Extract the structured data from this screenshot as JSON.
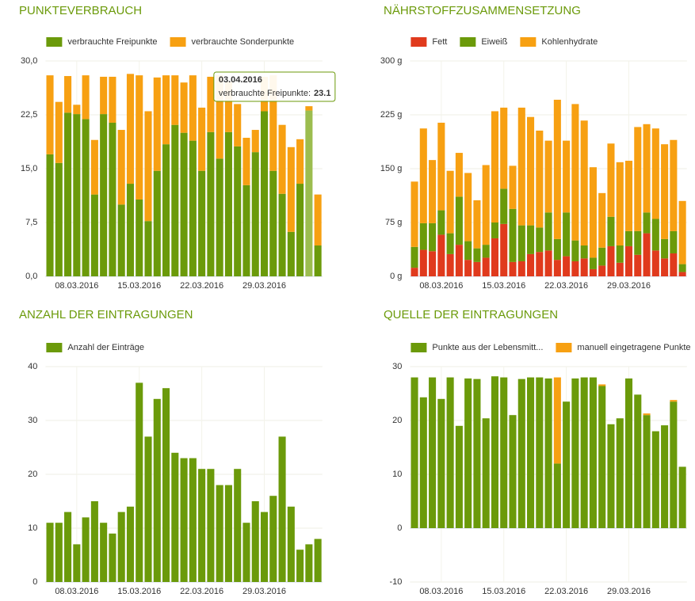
{
  "chart_data": [
    {
      "type": "bar",
      "title": "PUNKTEVERBRAUCH",
      "stacked": true,
      "grid": true,
      "categories": [
        null,
        null,
        null,
        "08.03.2016",
        null,
        null,
        null,
        null,
        null,
        null,
        "15.03.2016",
        null,
        null,
        null,
        null,
        null,
        null,
        "22.03.2016",
        null,
        null,
        null,
        null,
        null,
        null,
        "29.03.2016",
        null,
        null,
        null,
        null,
        null,
        null
      ],
      "series": [
        {
          "name": "verbrauchte Freipunkte",
          "color": "#6b9a0a",
          "values": [
            17.0,
            15.8,
            22.8,
            22.6,
            21.9,
            11.4,
            22.6,
            21.4,
            10.0,
            12.9,
            10.7,
            7.7,
            14.7,
            18.4,
            21.1,
            20.0,
            18.9,
            14.7,
            20.1,
            16.4,
            20.1,
            18.1,
            12.7,
            17.3,
            23.0,
            14.7,
            11.5,
            6.2,
            12.9,
            23.1,
            4.3
          ]
        },
        {
          "name": "verbrauchte Sonderpunkte",
          "color": "#f7a012",
          "values": [
            11.0,
            8.5,
            5.1,
            1.3,
            6.1,
            7.6,
            5.2,
            6.4,
            10.4,
            15.3,
            17.3,
            15.3,
            13.0,
            9.6,
            6.9,
            7.0,
            9.1,
            8.8,
            7.7,
            11.6,
            7.0,
            5.9,
            6.6,
            3.1,
            4.8,
            13.3,
            9.6,
            11.8,
            6.2,
            0.6,
            7.1
          ]
        }
      ],
      "ylim": [
        0,
        30
      ],
      "yticks": [
        {
          "value": 0,
          "label": "0,0"
        },
        {
          "value": 7.5,
          "label": "7,5"
        },
        {
          "value": 15,
          "label": "15,0"
        },
        {
          "value": 22.5,
          "label": "22,5"
        },
        {
          "value": 30,
          "label": "30,0"
        }
      ]
    },
    {
      "type": "bar",
      "title": "NÄHRSTOFFZUSAMMENSETZUNG",
      "stacked": true,
      "grid": true,
      "categories": [
        null,
        null,
        null,
        "08.03.2016",
        null,
        null,
        null,
        null,
        null,
        null,
        "15.03.2016",
        null,
        null,
        null,
        null,
        null,
        null,
        "22.03.2016",
        null,
        null,
        null,
        null,
        null,
        null,
        "29.03.2016",
        null,
        null,
        null,
        null,
        null,
        null
      ],
      "series": [
        {
          "name": "Fett",
          "color": "#e03a1d",
          "values": [
            12,
            37,
            35,
            58,
            31,
            44,
            23,
            20,
            26,
            53,
            73,
            20,
            21,
            31,
            34,
            36,
            23,
            28,
            21,
            25,
            10,
            15,
            42,
            19,
            42,
            30,
            60,
            36,
            25,
            32,
            6
          ]
        },
        {
          "name": "Eiweiß",
          "color": "#6b9a0a",
          "values": [
            29,
            37,
            39,
            34,
            29,
            67,
            26,
            19,
            18,
            22,
            49,
            74,
            50,
            40,
            34,
            53,
            29,
            61,
            29,
            18,
            16,
            25,
            41,
            24,
            21,
            33,
            29,
            44,
            27,
            31,
            11
          ]
        },
        {
          "name": "Kohlenhydrate",
          "color": "#f7a012",
          "values": [
            91,
            132,
            88,
            122,
            87,
            61,
            95,
            67,
            111,
            155,
            113,
            60,
            164,
            151,
            135,
            100,
            194,
            100,
            190,
            174,
            126,
            76,
            102,
            116,
            98,
            145,
            123,
            126,
            132,
            127,
            88
          ]
        }
      ],
      "ylim": [
        0,
        300
      ],
      "yticks": [
        {
          "value": 0,
          "label": "0 g"
        },
        {
          "value": 75,
          "label": "75 g"
        },
        {
          "value": 150,
          "label": "150 g"
        },
        {
          "value": 225,
          "label": "225 g"
        },
        {
          "value": 300,
          "label": "300 g"
        }
      ]
    },
    {
      "type": "bar",
      "title": "ANZAHL DER EINTRAGUNGEN",
      "stacked": true,
      "grid": true,
      "categories": [
        null,
        null,
        null,
        "08.03.2016",
        null,
        null,
        null,
        null,
        null,
        null,
        "15.03.2016",
        null,
        null,
        null,
        null,
        null,
        null,
        "22.03.2016",
        null,
        null,
        null,
        null,
        null,
        null,
        "29.03.2016",
        null,
        null,
        null,
        null,
        null,
        null
      ],
      "series": [
        {
          "name": "Anzahl der Einträge",
          "color": "#6b9a0a",
          "values": [
            11,
            11,
            13,
            7,
            12,
            15,
            11,
            9,
            13,
            14,
            37,
            27,
            34,
            36,
            24,
            23,
            23,
            21,
            21,
            18,
            18,
            21,
            11,
            15,
            13,
            16,
            27,
            14,
            6,
            7,
            8
          ]
        }
      ],
      "ylim": [
        0,
        40
      ],
      "yticks": [
        0,
        10,
        20,
        30,
        40
      ]
    },
    {
      "type": "bar",
      "title": "QUELLE DER EINTRAGUNGEN",
      "stacked": true,
      "grid": true,
      "categories": [
        null,
        null,
        null,
        "08.03.2016",
        null,
        null,
        null,
        null,
        null,
        null,
        "15.03.2016",
        null,
        null,
        null,
        null,
        null,
        null,
        "22.03.2016",
        null,
        null,
        null,
        null,
        null,
        null,
        "29.03.2016",
        null,
        null,
        null,
        null,
        null,
        null
      ],
      "series": [
        {
          "name": "Punkte aus der Lebensmitt...",
          "color": "#6b9a0a",
          "values": [
            28,
            24.3,
            28,
            24,
            28,
            19,
            27.8,
            27.7,
            20.4,
            28.2,
            28,
            21,
            27.7,
            28,
            28,
            27.8,
            12,
            23.5,
            27.8,
            28,
            28,
            26.4,
            19.3,
            20.4,
            27.8,
            24.8,
            21,
            18,
            19.1,
            23.5,
            11.4
          ]
        },
        {
          "name": "manuell eingetragene Punkte",
          "color": "#f7a012",
          "values": [
            0,
            0,
            0,
            0,
            0,
            0,
            0,
            0,
            0,
            0,
            0,
            0,
            0,
            0,
            0,
            0,
            16,
            0,
            0,
            0,
            0,
            0.3,
            0,
            0,
            0,
            0,
            0.3,
            0,
            0,
            0.3,
            0
          ]
        }
      ],
      "ylim": [
        -10,
        30
      ],
      "yticks": [
        -10,
        0,
        10,
        20,
        30
      ]
    }
  ],
  "tooltip": {
    "date": "03.04.2016",
    "label": "verbrauchte Freipunkte:",
    "value": 23.1
  }
}
